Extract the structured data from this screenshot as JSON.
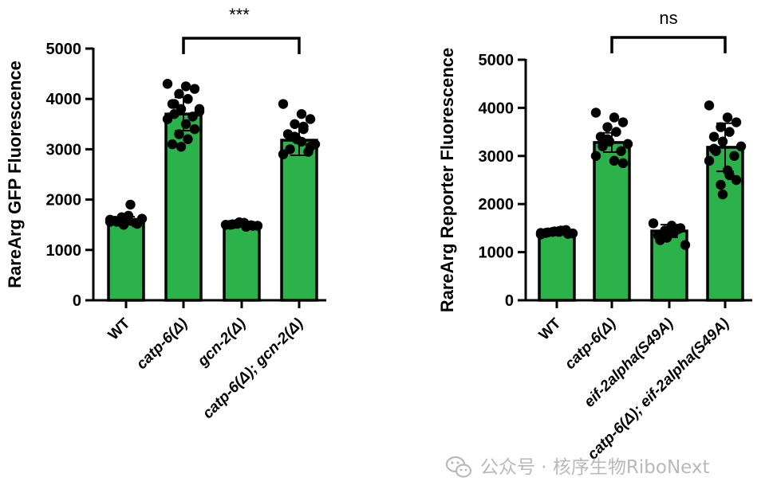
{
  "chart_data": [
    {
      "type": "bar",
      "ylabel": "RareArg GFP Fluorescence",
      "ylim": [
        0,
        5000
      ],
      "yticks": [
        0,
        1000,
        2000,
        3000,
        4000,
        5000
      ],
      "categories": [
        {
          "plain": "WT",
          "italic": ""
        },
        {
          "plain": "",
          "italic": "catp-6(Δ)"
        },
        {
          "plain": "",
          "italic": "gcn-2(Δ)"
        },
        {
          "plain": "",
          "italic": "catp-6(Δ); gcn-2(Δ)"
        }
      ],
      "values": [
        1580,
        3700,
        1500,
        3180
      ],
      "errors": [
        80,
        330,
        40,
        300
      ],
      "points": [
        [
          1560,
          1600,
          1520,
          1650,
          1900,
          1580,
          1500,
          1620,
          1560,
          1540,
          1600,
          1680,
          1520,
          1590
        ],
        [
          4300,
          4250,
          4200,
          4100,
          4000,
          3900,
          3800,
          3750,
          3700,
          3650,
          3600,
          3500,
          3400,
          3300,
          3200,
          3100,
          3050,
          3800,
          3900
        ],
        [
          1500,
          1540,
          1480,
          1520,
          1460,
          1500,
          1550,
          1480,
          1510,
          1490
        ],
        [
          3900,
          3700,
          3600,
          3500,
          3400,
          3300,
          3200,
          3100,
          3000,
          2950,
          2900,
          3150,
          3050,
          3250,
          3450
        ]
      ],
      "bar_color": "#2cb24b",
      "significance": {
        "from": 1,
        "to": 3,
        "label": "***"
      }
    },
    {
      "type": "bar",
      "ylabel": "RareArg Reporter Fluorescence",
      "ylim": [
        0,
        5000
      ],
      "yticks": [
        0,
        1000,
        2000,
        3000,
        4000,
        5000
      ],
      "categories": [
        {
          "plain": "WT",
          "italic": ""
        },
        {
          "plain": "",
          "italic": "catp-6(Δ)"
        },
        {
          "plain": "",
          "italic": "eif-2alpha(S49A)"
        },
        {
          "plain": "",
          "italic": "catp-6(Δ); eif-2alpha(S49A)"
        }
      ],
      "values": [
        1420,
        3280,
        1440,
        3180
      ],
      "errors": [
        40,
        200,
        130,
        500
      ],
      "points": [
        [
          1400,
          1440,
          1380,
          1420,
          1450,
          1400,
          1430,
          1390,
          1410,
          1460,
          1370,
          1420
        ],
        [
          3900,
          3800,
          3700,
          3600,
          3500,
          3400,
          3300,
          3250,
          3200,
          3100,
          3000,
          2900,
          2850,
          3350
        ],
        [
          1600,
          1550,
          1500,
          1450,
          1400,
          1350,
          1300,
          1150,
          1250,
          1480
        ],
        [
          4050,
          3800,
          3700,
          3600,
          3500,
          3400,
          3300,
          3200,
          3100,
          3000,
          2900,
          2700,
          2500,
          2400,
          2600,
          3150,
          2200
        ]
      ],
      "bar_color": "#2cb24b",
      "significance": {
        "from": 1,
        "to": 3,
        "label": "ns"
      }
    }
  ],
  "watermark": {
    "text": "公众号 · 核序生物RiboNext",
    "icon": "wechat-icon"
  }
}
